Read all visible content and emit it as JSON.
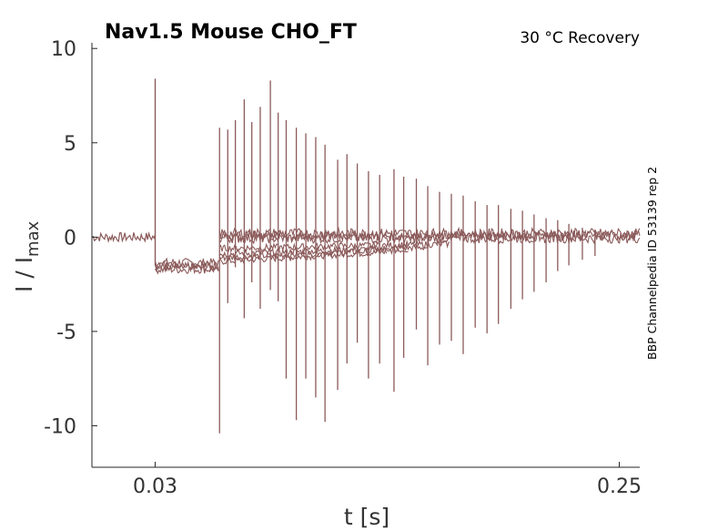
{
  "chart_data": {
    "type": "line",
    "title": "Nav1.5  Mouse  CHO_FT",
    "subtitle": "30 °C  Recovery",
    "side_label": "BBP Channelpedia ID 53139 rep 2",
    "xlabel": "t [s]",
    "ylabel_main": "I / I",
    "ylabel_sub": "max",
    "xlim": [
      0.0,
      0.2597
    ],
    "ylim": [
      -12.2,
      10.3
    ],
    "xticks": [
      0.03,
      0.25
    ],
    "xtick_labels": [
      "0.03",
      "0.25"
    ],
    "yticks": [
      10,
      5,
      0,
      -5,
      -10
    ],
    "ytick_labels": [
      "10",
      "5",
      "0",
      "-5",
      "-10"
    ],
    "line_color": "#8b5a5a",
    "traces": {
      "description_of_protocol": "two-pulse recovery: conditioning step then test pulses at increasing delays",
      "conditioning_start": 0.03,
      "conditioning_end": 0.0605,
      "baseline": 0.0,
      "conditioning_level": -1.35,
      "recovery_levels": [
        -1.3,
        -1.1,
        -0.9,
        -0.6
      ],
      "test_pulse_times": [
        0.0605,
        0.0644,
        0.068,
        0.0722,
        0.0758,
        0.0798,
        0.0846,
        0.0883,
        0.0921,
        0.0969,
        0.1014,
        0.1061,
        0.1105,
        0.1165,
        0.1209,
        0.1258,
        0.1311,
        0.1364,
        0.1432,
        0.1478,
        0.1538,
        0.1592,
        0.1648,
        0.1704,
        0.176,
        0.1817,
        0.1873,
        0.1927,
        0.1986,
        0.2041,
        0.2096,
        0.2153,
        0.2208,
        0.2261,
        0.2325,
        0.2385
      ],
      "test_pulse_peaks_up": [
        5.8,
        5.7,
        6.2,
        7.3,
        6.1,
        6.9,
        8.3,
        6.6,
        6.2,
        5.8,
        5.5,
        5.3,
        4.9,
        4.1,
        4.4,
        3.9,
        3.5,
        3.3,
        3.6,
        3.2,
        3.1,
        2.7,
        2.4,
        2.3,
        2.2,
        1.9,
        1.7,
        1.7,
        1.5,
        1.4,
        1.2,
        1.0,
        0.9,
        0.7,
        0.5,
        0.4
      ],
      "test_pulse_peaks_down": [
        -10.4,
        -3.5,
        -1.6,
        -4.3,
        -2.4,
        -3.8,
        -2.8,
        -3.4,
        -7.5,
        -9.7,
        -7.5,
        -8.5,
        -9.8,
        -8.1,
        -6.7,
        -5.6,
        -7.5,
        -6.7,
        -8.2,
        -6.4,
        -4.9,
        -6.8,
        -5.7,
        -5.5,
        -6.2,
        -4.8,
        -5.1,
        -4.6,
        -3.8,
        -3.3,
        -2.9,
        -2.4,
        -1.8,
        -1.5,
        -1.2,
        -1.0
      ],
      "conditioning_peak_up": 8.4,
      "conditioning_peak_down": -1.5
    }
  }
}
